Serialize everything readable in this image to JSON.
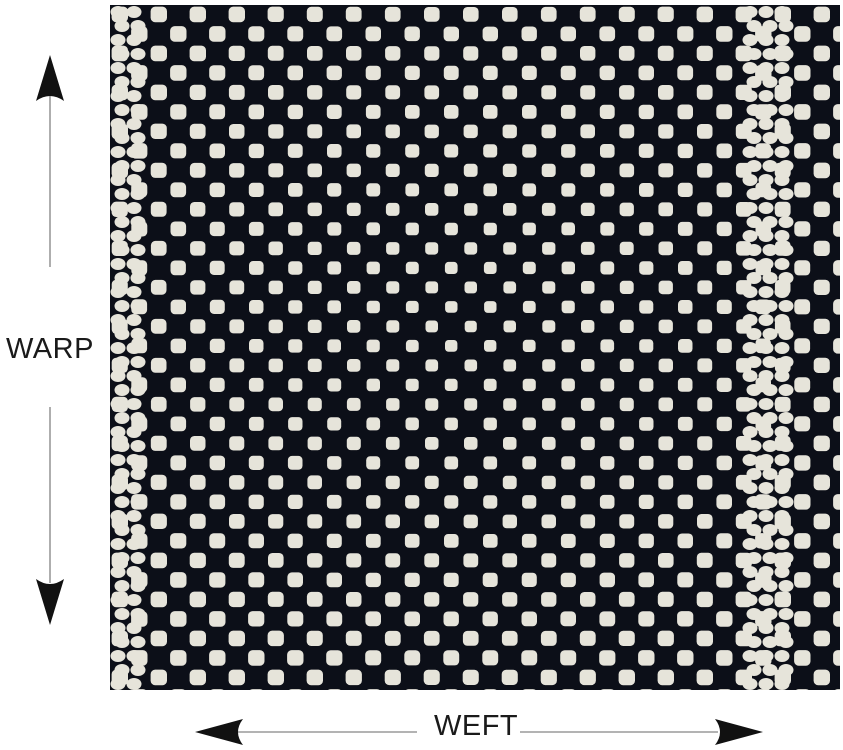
{
  "figure": {
    "warp_label": "WARP",
    "weft_label": "WEFT"
  },
  "colors": {
    "background": "#ffffff",
    "dark_yarn": "#0c0f18",
    "light_yarn": "#e6e4da",
    "arrow": "#111111",
    "arrow_shaft": "#9a9a9a",
    "label": "#1a1a1a"
  },
  "icons": {
    "warp_arrow": "double-headed-vertical-arrow",
    "weft_arrow": "double-headed-horizontal-arrow"
  }
}
